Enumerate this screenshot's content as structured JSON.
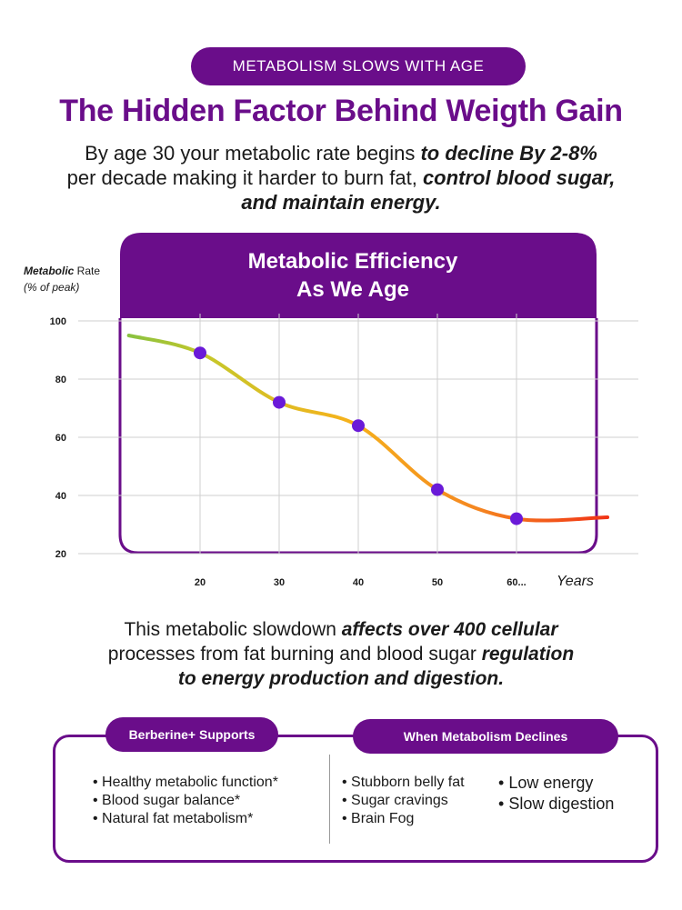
{
  "header": {
    "tag": "METABOLISM SLOWS WITH AGE",
    "title": "The Hidden Factor Behind Weigth Gain"
  },
  "intro": {
    "line1_plain": "By age 30 your metabolic rate begins ",
    "line1_emph": "to decline By 2-8%",
    "line2_plain": "per decade making it harder to burn fat, ",
    "line2_emph": "control blood sugar,",
    "line3_emph": "and maintain energy."
  },
  "chart_data": {
    "type": "line",
    "title_line1": "Metabolic Efficiency",
    "title_line2": "As We Age",
    "ylabel_bold": "Metabolic",
    "ylabel_rest": " Rate",
    "ylabel_sub": "(% of peak)",
    "xlabel": "Years",
    "ylim": [
      20,
      100
    ],
    "yticks": [
      "100",
      "80",
      "60",
      "40",
      "20"
    ],
    "ytick_values": [
      100,
      80,
      60,
      40,
      20
    ],
    "xticks": [
      "20",
      "30",
      "40",
      "50",
      "60..."
    ],
    "xtick_values": [
      20,
      30,
      40,
      50,
      60
    ],
    "xlim": [
      10,
      72
    ],
    "series": [
      {
        "name": "Metabolic Rate",
        "points": [
          {
            "x": 20,
            "y": 89
          },
          {
            "x": 30,
            "y": 72
          },
          {
            "x": 40,
            "y": 64
          },
          {
            "x": 50,
            "y": 42
          },
          {
            "x": 60,
            "y": 32
          }
        ],
        "curve_start": {
          "x": 11,
          "y": 95
        },
        "curve_end": {
          "x": 71.5,
          "y": 32.5
        }
      }
    ],
    "colors": {
      "panel": "#6a0d8a",
      "marker": "#6a1ad8",
      "gradient": [
        "#6cbf4a",
        "#c6c72a",
        "#f5b21c",
        "#f58820",
        "#f02a14"
      ]
    }
  },
  "body": {
    "p1": "This metabolic slowdown ",
    "p1_emph": "affects over 400 cellular",
    "p2": "processes from fat burning and blood sugar ",
    "p2_emph": "regulation",
    "p3_emph": "to energy production and digestion."
  },
  "support_box": {
    "left_title": "Berberine+ Supports",
    "right_title": "When Metabolism Declines",
    "left_items": [
      "Healthy metabolic function*",
      "Blood sugar balance*",
      "Natural fat metabolism*"
    ],
    "mid_items": [
      "Stubborn belly fat",
      "Sugar cravings",
      "Brain Fog"
    ],
    "right_items": [
      "Low energy",
      "Slow digestion"
    ]
  }
}
